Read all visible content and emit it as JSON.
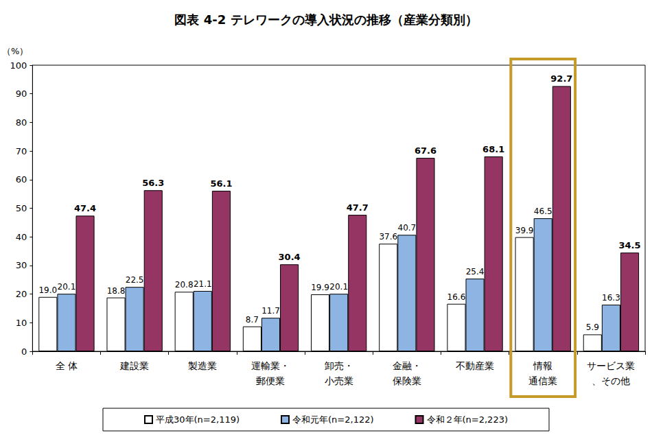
{
  "chart_data": {
    "type": "bar",
    "title": "図表 4-2 テレワークの導入状況の推移（産業分類別）",
    "y_label": "（%）",
    "categories": [
      "全 体",
      "建設業",
      "製造業",
      "運輸業・\n郵便業",
      "卸売・\n小売業",
      "金融・\n保険業",
      "不動産業",
      "情報\n通信業",
      "サービス業\n、その他"
    ],
    "series": [
      {
        "name": "平成30年(n=2,119)",
        "color": "#ffffff",
        "values": [
          19.0,
          18.8,
          20.8,
          8.7,
          19.9,
          37.6,
          16.6,
          39.9,
          5.9
        ],
        "value_labels": [
          "19.0",
          "18.8",
          "20.8",
          "8.7",
          "19.9",
          "37.6",
          "16.6",
          "39.9",
          "5.9"
        ]
      },
      {
        "name": "令和元年(n=2,122)",
        "color": "#8db4e2",
        "values": [
          20.1,
          22.5,
          21.1,
          11.7,
          20.1,
          40.7,
          25.4,
          46.5,
          16.3
        ],
        "value_labels": [
          "20.1",
          "22.5",
          "21.1",
          "11.7",
          "20.1",
          "40.7",
          "25.4",
          "46.5",
          "16.3"
        ]
      },
      {
        "name": "令和２年(n=2,223)",
        "color": "#953563",
        "values": [
          47.4,
          56.3,
          56.1,
          30.4,
          47.7,
          67.6,
          68.1,
          92.7,
          34.5
        ],
        "value_labels": [
          "47.4",
          "56.3",
          "56.1",
          "30.4",
          "47.7",
          "67.6",
          "68.1",
          "92.7",
          "34.5"
        ]
      }
    ],
    "ylim": [
      0,
      100
    ],
    "yticks": [
      0,
      10,
      20,
      30,
      40,
      50,
      60,
      70,
      80,
      90,
      100
    ],
    "grid": false,
    "legend": "bottom",
    "data_labels": true
  }
}
